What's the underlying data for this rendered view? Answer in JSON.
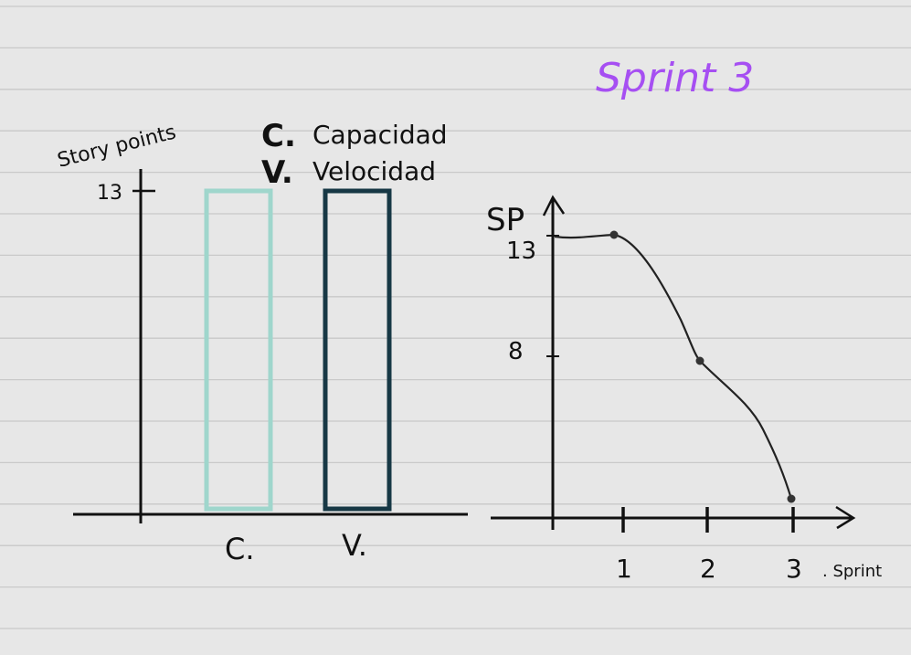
{
  "page": {
    "title": "Sprint 3",
    "title_color": "#a64ff2",
    "paper_color": "#e7e7e7",
    "ruled_line_color": "#c9c9c9"
  },
  "legend": {
    "items": [
      {
        "key": "C.",
        "label": "Capacidad"
      },
      {
        "key": "V.",
        "label": "Velocidad"
      }
    ]
  },
  "chart_data": [
    {
      "type": "bar",
      "ylabel": "Story points",
      "yticks": [
        "13"
      ],
      "ylim": [
        0,
        13
      ],
      "categories": [
        "C.",
        "V."
      ],
      "values": [
        13,
        13
      ],
      "bar_colors": [
        "#9fd6cc",
        "#173845"
      ],
      "bar_style": "outline",
      "grid": false
    },
    {
      "type": "line",
      "ylabel": "SP",
      "xlabel": ". Sprint",
      "x_ticks": [
        "1",
        "2",
        "3"
      ],
      "y_ticks": [
        "8",
        "13"
      ],
      "x": [
        1,
        2,
        3
      ],
      "y": [
        13,
        8,
        0
      ],
      "start_y": 13,
      "ylim": [
        0,
        13
      ],
      "grid": false
    }
  ]
}
